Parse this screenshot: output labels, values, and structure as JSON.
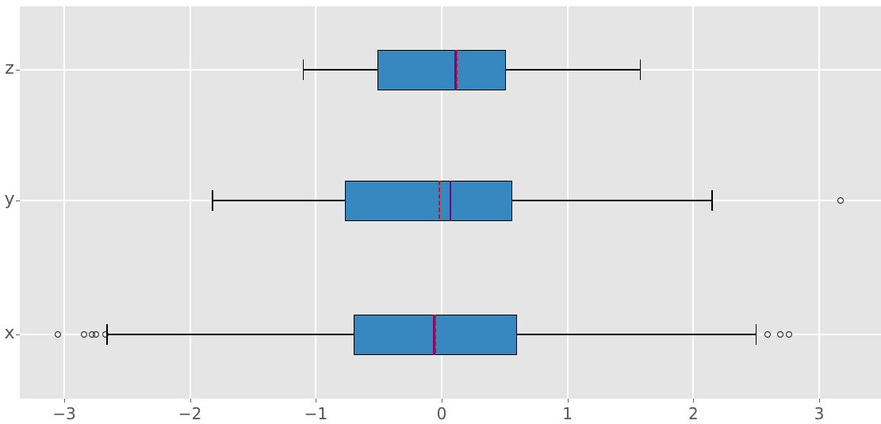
{
  "chart_data": {
    "type": "boxplot",
    "orientation": "horizontal",
    "title": "",
    "xlabel": "",
    "ylabel": "",
    "categories_top_to_bottom": [
      "z",
      "y",
      "x"
    ],
    "x_ticks": [
      -3,
      -2,
      -1,
      0,
      1,
      2,
      3
    ],
    "x_tick_labels": [
      "−3",
      "−2",
      "−1",
      "0",
      "1",
      "2",
      "3"
    ],
    "xlim": [
      -3.35,
      3.49
    ],
    "grid": true,
    "legend": false,
    "series": [
      {
        "name": "z",
        "whisker_low": -1.1,
        "q1": -0.51,
        "median": 0.11,
        "mean": 0.12,
        "q3": 0.51,
        "whisker_high": 1.58,
        "outliers": []
      },
      {
        "name": "y",
        "whisker_low": -1.82,
        "q1": -0.77,
        "median": 0.07,
        "mean": -0.02,
        "q3": 0.56,
        "whisker_high": 2.15,
        "outliers": [
          3.17
        ]
      },
      {
        "name": "x",
        "whisker_low": -2.66,
        "q1": -0.7,
        "median": -0.06,
        "mean": -0.05,
        "q3": 0.6,
        "whisker_high": 2.5,
        "outliers": [
          -3.05,
          -2.84,
          -2.78,
          -2.75,
          -2.67,
          2.59,
          2.69,
          2.76
        ]
      }
    ],
    "colors": {
      "box_fill": "#3787c0",
      "box_edge": "#000000",
      "whisker": "#000000",
      "median_line": "#800080",
      "mean_line": "#ee0000",
      "plot_background": "#e5e5e5",
      "gridline": "#ffffff",
      "figure_background": "#ffffff",
      "tick_text": "#555555",
      "tick_mark": "#666666"
    },
    "style": {
      "median_style": "solid",
      "mean_style": "dashed",
      "outlier_marker": "open-circle"
    }
  }
}
